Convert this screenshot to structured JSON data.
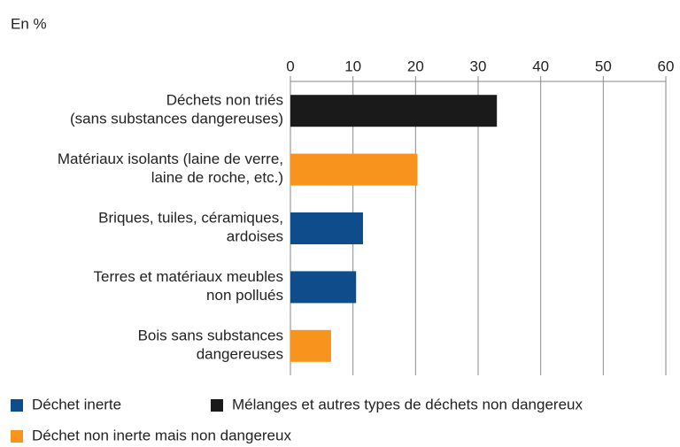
{
  "chart_data": {
    "type": "bar",
    "orientation": "horizontal",
    "unit_label": "En %",
    "categories": [
      "Déchets non triés\n(sans substances dangereuses)",
      "Matériaux isolants (laine de verre,\nlaine de roche, etc.)",
      "Briques, tuiles, céramiques,\nardoises",
      "Terres et matériaux meubles\nnon pollués",
      "Bois sans substances\ndangereuses"
    ],
    "values": [
      33,
      20.3,
      11.6,
      10.5,
      6.5
    ],
    "colors": [
      "#1a1a1a",
      "#f7941d",
      "#0f4c8c",
      "#0f4c8c",
      "#f7941d"
    ],
    "xlim": [
      0,
      60
    ],
    "xticks": [
      0,
      10,
      20,
      30,
      40,
      50,
      60
    ],
    "grid": true,
    "legend": [
      {
        "name": "Déchet inerte",
        "color": "#0f4c8c"
      },
      {
        "name": "Mélanges et autres types de déchets non dangereux",
        "color": "#1a1a1a"
      },
      {
        "name": "Déchet non inerte mais non dangereux",
        "color": "#f7941d"
      }
    ]
  }
}
